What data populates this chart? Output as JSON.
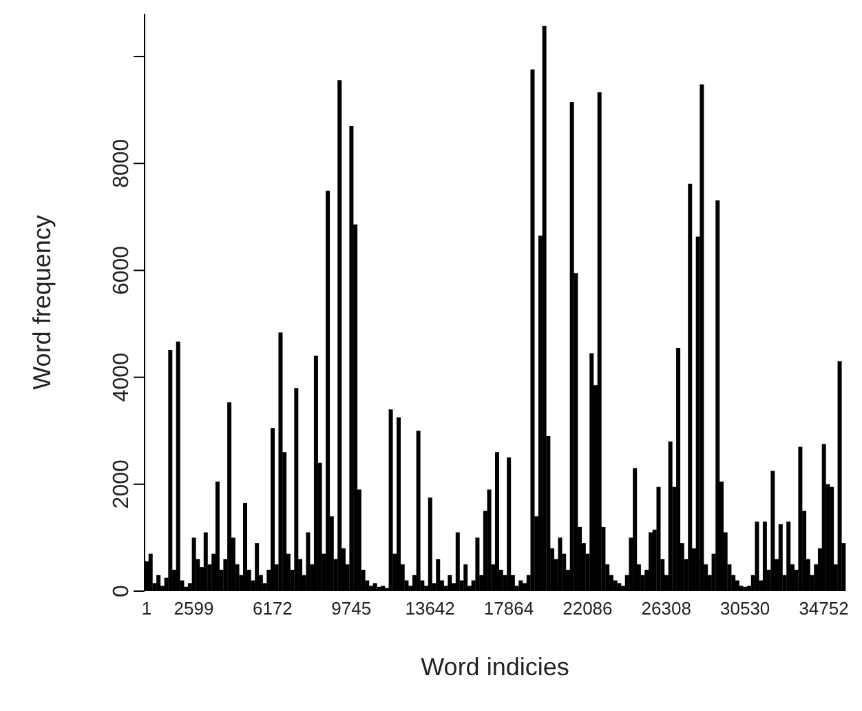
{
  "chart_data": {
    "type": "bar",
    "xlabel": "Word indicies",
    "ylabel": "Word frequency",
    "color": "#000000",
    "categories": [
      "1",
      null,
      null,
      null,
      null,
      null,
      null,
      null,
      null,
      null,
      null,
      null,
      "2599",
      null,
      null,
      null,
      null,
      null,
      null,
      null,
      null,
      null,
      null,
      null,
      null,
      null,
      null,
      null,
      null,
      null,
      null,
      null,
      "6172",
      null,
      null,
      null,
      null,
      null,
      null,
      null,
      null,
      null,
      null,
      null,
      null,
      null,
      null,
      null,
      null,
      null,
      null,
      null,
      "9745",
      null,
      null,
      null,
      null,
      null,
      null,
      null,
      null,
      null,
      null,
      null,
      null,
      null,
      null,
      null,
      null,
      null,
      null,
      null,
      "13642",
      null,
      null,
      null,
      null,
      null,
      null,
      null,
      null,
      null,
      null,
      null,
      null,
      null,
      null,
      null,
      null,
      null,
      null,
      null,
      "17864",
      null,
      null,
      null,
      null,
      null,
      null,
      null,
      null,
      null,
      null,
      null,
      null,
      null,
      null,
      null,
      null,
      null,
      null,
      null,
      "22086",
      null,
      null,
      null,
      null,
      null,
      null,
      null,
      null,
      null,
      null,
      null,
      null,
      null,
      null,
      null,
      null,
      null,
      null,
      null,
      "26308",
      null,
      null,
      null,
      null,
      null,
      null,
      null,
      null,
      null,
      null,
      null,
      null,
      null,
      null,
      null,
      null,
      null,
      null,
      null,
      "30530",
      null,
      null,
      null,
      null,
      null,
      null,
      null,
      null,
      null,
      null,
      null,
      null,
      null,
      null,
      null,
      null,
      null,
      null,
      null,
      "34752",
      null,
      null,
      null,
      null,
      null
    ],
    "values": [
      560,
      700,
      150,
      300,
      100,
      250,
      4510,
      400,
      4670,
      200,
      80,
      150,
      1000,
      600,
      450,
      1100,
      500,
      700,
      2050,
      400,
      600,
      3530,
      1000,
      500,
      300,
      1650,
      400,
      200,
      900,
      300,
      150,
      400,
      3050,
      500,
      4840,
      2600,
      700,
      400,
      3800,
      600,
      300,
      1100,
      500,
      4400,
      2400,
      700,
      7490,
      1400,
      600,
      9560,
      800,
      500,
      8700,
      6860,
      1900,
      400,
      200,
      100,
      150,
      80,
      100,
      60,
      3400,
      700,
      3250,
      500,
      200,
      100,
      300,
      3000,
      200,
      100,
      1750,
      150,
      600,
      200,
      100,
      300,
      150,
      1100,
      200,
      500,
      100,
      200,
      1000,
      300,
      1500,
      1900,
      500,
      2600,
      400,
      300,
      2500,
      300,
      100,
      200,
      150,
      300,
      9760,
      1400,
      6650,
      10570,
      2900,
      800,
      600,
      1000,
      700,
      400,
      9150,
      5950,
      1200,
      900,
      700,
      4450,
      3850,
      9330,
      1200,
      500,
      300,
      200,
      150,
      100,
      300,
      1000,
      2300,
      500,
      300,
      400,
      1100,
      1150,
      1950,
      600,
      300,
      2800,
      1950,
      4550,
      900,
      600,
      7620,
      800,
      6630,
      9480,
      500,
      300,
      700,
      7310,
      2050,
      1100,
      500,
      300,
      200,
      100,
      80,
      100,
      300,
      1300,
      200,
      1300,
      400,
      2250,
      600,
      1250,
      300,
      1300,
      500,
      400,
      2700,
      1500,
      600,
      300,
      500,
      800,
      2750,
      2000,
      1950,
      500,
      4300,
      900
    ],
    "ylim": [
      0,
      10800
    ],
    "yticks": [
      0,
      2000,
      4000,
      6000,
      8000,
      {
        "value": 10000,
        "label": null
      }
    ],
    "grid": false
  }
}
